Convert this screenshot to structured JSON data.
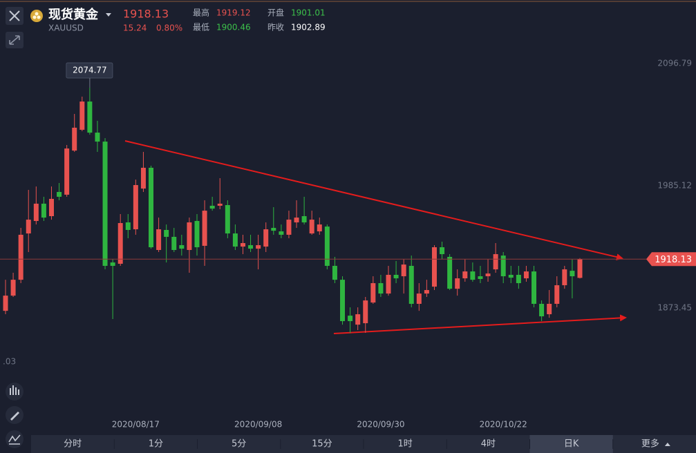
{
  "header": {
    "name": "现货黄金",
    "symbol": "XAUUSD",
    "price": 1918.13,
    "change": 15.24,
    "change_pct": "0.80%",
    "color": "#e8524f",
    "stats": [
      {
        "label": "最高",
        "value": 1919.12,
        "color": "#e8524f"
      },
      {
        "label": "开盘",
        "value": 1901.01,
        "color": "#3cc04a"
      },
      {
        "label": "最低",
        "value": 1900.46,
        "color": "#3cc04a"
      },
      {
        "label": "昨收",
        "value": 1902.89,
        "color": "#ffffff"
      }
    ]
  },
  "chart_data": {
    "type": "candlestick",
    "categories": [
      null,
      null,
      null,
      null,
      null,
      null,
      null,
      null,
      null,
      null,
      null,
      null,
      null,
      null,
      null,
      null,
      null,
      "2020/08/17",
      null,
      null,
      null,
      null,
      null,
      null,
      null,
      null,
      null,
      null,
      null,
      null,
      null,
      null,
      null,
      "2020/09/08",
      null,
      null,
      null,
      null,
      null,
      null,
      null,
      null,
      null,
      null,
      null,
      null,
      null,
      null,
      null,
      "2020/09/30",
      null,
      null,
      null,
      null,
      null,
      null,
      null,
      null,
      null,
      null,
      null,
      null,
      null,
      null,
      null,
      "2020/10/22",
      null,
      null,
      null,
      null,
      null,
      null,
      null,
      null,
      null,
      null
    ],
    "open": [
      1870.9,
      1884.8,
      1899.3,
      1941.6,
      1953,
      1968.8,
      1957.4,
      1979.5,
      1977,
      2017.3,
      2036.3,
      2062.1,
      2033.7,
      2025.5,
      1915.1,
      1913.9,
      1951.7,
      1945.4,
      1982.6,
      2001.6,
      1926.5,
      1944.8,
      1938.5,
      1930.9,
      1926.5,
      1953,
      1930.3,
      1966.9,
      1966.9,
      1967.5,
      1941.6,
      1929.6,
      1930.9,
      1927.7,
      1929.6,
      1946.7,
      1943.5,
      1940.4,
      1951.7,
      1957.4,
      1941.6,
      1943.5,
      1947.9,
      1912,
      1899.3,
      1866.5,
      1858.3,
      1859.6,
      1878.5,
      1896.2,
      1886.7,
      1903.8,
      1902.5,
      1912,
      1877.3,
      1886.7,
      1893,
      1929,
      1920.2,
      1891.1,
      1900.6,
      1906.9,
      1902.5,
      1902.5,
      1908.8,
      1921.4,
      1903.8,
      1903.8,
      1900.6,
      1906.9,
      1877.3,
      1867.8,
      1877.3,
      1894.3,
      1907.5,
      1901.01
    ],
    "high": [
      1899.3,
      1905.7,
      1946.7,
      1981.4,
      1984.5,
      1975.1,
      1984.5,
      1987.7,
      2022.4,
      2050.8,
      2066.6,
      2074.77,
      2044.5,
      2028.7,
      1918.3,
      1959.3,
      1959.3,
      1990.8,
      2016.1,
      2003.5,
      1956.1,
      1949.8,
      1946.7,
      1940.4,
      1956.1,
      1959.3,
      1971.9,
      1975.1,
      1992.1,
      1971.9,
      1949.8,
      1940.4,
      1940.4,
      1940.4,
      1951.7,
      1965.6,
      1949.8,
      1962.4,
      1971.9,
      1975.1,
      1962.4,
      1956.1,
      1949.8,
      1920.2,
      1902.5,
      1874.1,
      1874.1,
      1883.6,
      1902.5,
      1903.8,
      1912,
      1916.4,
      1918.3,
      1921.4,
      1896.2,
      1899.3,
      1930.9,
      1934.1,
      1922.7,
      1908.8,
      1918.3,
      1915.1,
      1912,
      1918.3,
      1932.8,
      1924.6,
      1912,
      1912,
      1912,
      1912,
      1880.4,
      1889.9,
      1902.5,
      1912,
      1918.3,
      1919.12
    ],
    "low": [
      1867.8,
      1883.6,
      1896.2,
      1924.6,
      1949.8,
      1953,
      1954.2,
      1971.9,
      1975.1,
      2016.1,
      2035,
      2031.9,
      2016.1,
      1908.8,
      1863.4,
      1912,
      1937.2,
      1940.4,
      1979.5,
      1927.7,
      1924.6,
      1915.1,
      1924.6,
      1921.4,
      1905.7,
      1921.4,
      1912,
      1962.4,
      1963.7,
      1937.2,
      1926.5,
      1922.7,
      1924.6,
      1908.8,
      1924.6,
      1940.4,
      1937.2,
      1937.2,
      1946.7,
      1949.8,
      1940.4,
      1940.4,
      1908.8,
      1896.2,
      1858.3,
      1850.8,
      1853.3,
      1850.8,
      1877.3,
      1883.6,
      1884.8,
      1896.2,
      1886.7,
      1874.1,
      1870.9,
      1883.6,
      1889.9,
      1918.3,
      1889.9,
      1884.8,
      1897.5,
      1897.5,
      1896.2,
      1897.5,
      1905.7,
      1896.2,
      1896.2,
      1891.1,
      1897.5,
      1874.1,
      1861.5,
      1864.6,
      1874.1,
      1891.1,
      1882.3,
      1900.46
    ],
    "close": [
      1884.8,
      1899.3,
      1940.4,
      1954.2,
      1968.8,
      1956.1,
      1973.2,
      1975.1,
      2019.2,
      2038.2,
      2062.1,
      2033.7,
      2025.5,
      1912,
      1912,
      1951.1,
      1944.8,
      1985.8,
      2001.6,
      1929,
      1945.4,
      1938.5,
      1926.5,
      1927.7,
      1951.7,
      1929,
      1962.4,
      1964.3,
      1968.8,
      1941.6,
      1929.6,
      1932.8,
      1927.7,
      1930.9,
      1945.4,
      1944.1,
      1940.4,
      1954.2,
      1956.1,
      1951.7,
      1954.2,
      1949.8,
      1912,
      1899.3,
      1861.5,
      1861.5,
      1867.8,
      1880.4,
      1896.2,
      1886.7,
      1903.8,
      1900.6,
      1913.2,
      1877.3,
      1886.7,
      1889.9,
      1929,
      1922.7,
      1891.1,
      1900.6,
      1906.9,
      1899.3,
      1900,
      1905,
      1922.7,
      1902.5,
      1901.2,
      1896.2,
      1906.9,
      1877.3,
      1865.9,
      1877.3,
      1894.3,
      1908.8,
      1902.5,
      1918.13
    ],
    "up_color": "#e8524f",
    "down_color": "#2fb640",
    "ylim": [
      1758.7,
      2151.7
    ],
    "yticks": [
      1873.45,
      1985.12,
      2096.79
    ],
    "y_axis_fragment": ".03"
  },
  "tabs": [
    "分时",
    "1分",
    "5分",
    "15分",
    "1时",
    "4时",
    "日K",
    "更多"
  ],
  "selected_tab": 6
}
